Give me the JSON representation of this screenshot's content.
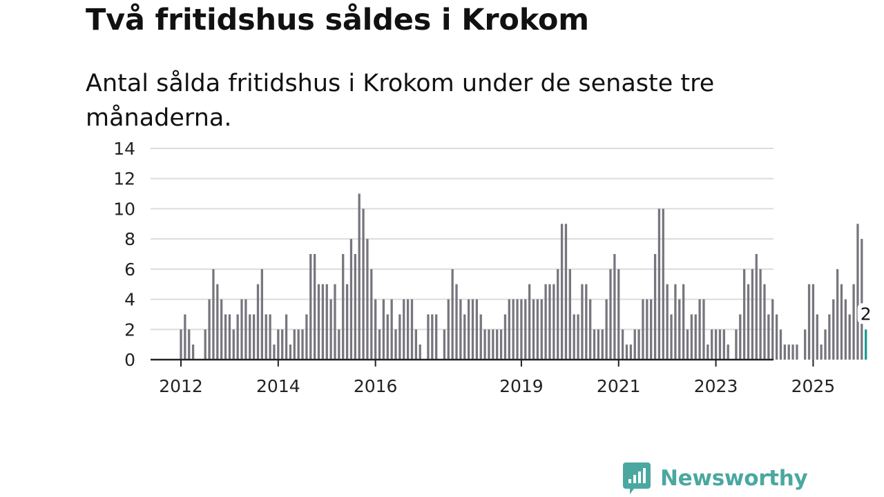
{
  "title": "Två fritidshus såldes i Krokom",
  "subtitle": "Antal sålda fritidshus i Krokom under de senaste tre månaderna.",
  "logo_text": "Newsworthy",
  "colors": {
    "bar": "#77767e",
    "highlight": "#1a9a93",
    "grid": "#dcdcdc",
    "axis": "#222222"
  },
  "chart_data": {
    "type": "bar",
    "title": "Två fritidshus såldes i Krokom",
    "ylabel": "",
    "xlabel": "",
    "ylim": [
      0,
      14
    ],
    "yticks": [
      0,
      2,
      4,
      6,
      8,
      10,
      12,
      14
    ],
    "grid": true,
    "x_tick_labels": [
      "2012",
      "2014",
      "2016",
      "2019",
      "2021",
      "2023",
      "2025"
    ],
    "x_tick_index": [
      0,
      24,
      48,
      84,
      108,
      132,
      156
    ],
    "highlight": {
      "label": "2",
      "value": 2
    },
    "values": [
      2,
      3,
      2,
      1,
      0,
      0,
      2,
      4,
      6,
      5,
      4,
      3,
      3,
      2,
      3,
      4,
      4,
      3,
      3,
      5,
      6,
      3,
      3,
      1,
      2,
      2,
      3,
      1,
      2,
      2,
      2,
      3,
      7,
      7,
      5,
      5,
      5,
      4,
      5,
      2,
      7,
      5,
      8,
      7,
      11,
      10,
      8,
      6,
      4,
      2,
      4,
      3,
      4,
      2,
      3,
      4,
      4,
      4,
      2,
      1,
      0,
      3,
      3,
      3,
      0,
      2,
      4,
      6,
      5,
      4,
      3,
      4,
      4,
      4,
      3,
      2,
      2,
      2,
      2,
      2,
      3,
      4,
      4,
      4,
      4,
      4,
      5,
      4,
      4,
      4,
      5,
      5,
      5,
      6,
      9,
      9,
      6,
      3,
      3,
      5,
      5,
      4,
      2,
      2,
      2,
      4,
      6,
      7,
      6,
      2,
      1,
      1,
      2,
      2,
      4,
      4,
      4,
      7,
      10,
      10,
      5,
      3,
      5,
      4,
      5,
      2,
      3,
      3,
      4,
      4,
      1,
      2,
      2,
      2,
      2,
      1,
      0,
      2,
      3,
      6,
      5,
      6,
      7,
      6,
      5,
      3,
      4,
      3,
      2,
      1,
      1,
      1,
      1,
      0,
      2,
      5,
      5,
      3,
      1,
      2,
      3,
      4,
      6,
      5,
      4,
      3,
      5,
      9,
      8,
      2
    ]
  }
}
